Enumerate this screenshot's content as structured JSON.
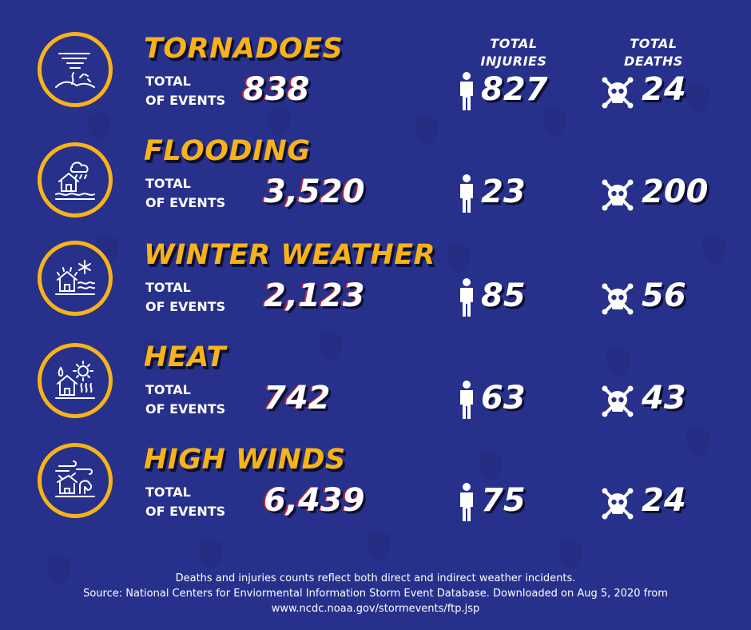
{
  "headers": {
    "injuries": [
      "TOTAL",
      "INJURIES"
    ],
    "deaths": [
      "TOTAL",
      "DEATHS"
    ]
  },
  "events_label": [
    "TOTAL",
    "OF EVENTS"
  ],
  "rows": [
    {
      "title": "TORNADOES",
      "events": "838",
      "injuries": "827",
      "deaths": "24",
      "icon": "tornado-icon"
    },
    {
      "title": "FLOODING",
      "events": "3,520",
      "injuries": "23",
      "deaths": "200",
      "icon": "flood-house-icon"
    },
    {
      "title": "WINTER WEATHER",
      "events": "2,123",
      "injuries": "85",
      "deaths": "56",
      "icon": "snow-house-icon"
    },
    {
      "title": "HEAT",
      "events": "742",
      "injuries": "63",
      "deaths": "43",
      "icon": "heat-house-icon"
    },
    {
      "title": "HIGH WINDS",
      "events": "6,439",
      "injuries": "75",
      "deaths": "24",
      "icon": "wind-house-icon"
    }
  ],
  "footer": [
    "Deaths and injuries counts reflect both direct and indirect weather incidents.",
    "Source: National Centers for Enviormental Information Storm Event Database. Downloaded on Aug 5, 2020 from",
    "www.ncdc.noaa.gov/stormevents/ftp.jsp"
  ],
  "colors": {
    "background": "#27318c",
    "accent": "#f7b318",
    "text": "#ffffff",
    "shadow": "#0d0f33"
  }
}
